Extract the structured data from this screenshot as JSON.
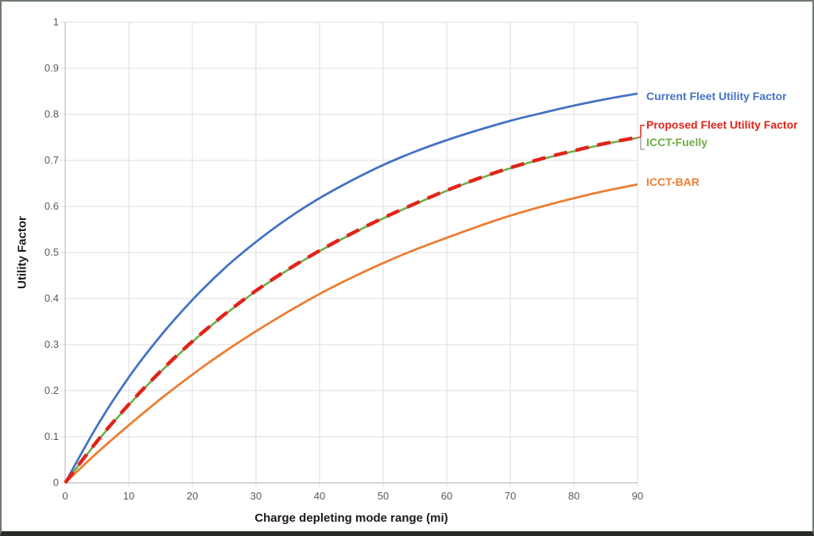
{
  "axes": {
    "y_title": "Utility Factor",
    "x_title": "Charge depleting mode range (mi)"
  },
  "chart_data": {
    "type": "line",
    "title": "",
    "xlabel": "Charge depleting mode range (mi)",
    "ylabel": "Utility Factor",
    "xlim": [
      0,
      90
    ],
    "ylim": [
      0,
      1
    ],
    "x_ticks": [
      0,
      10,
      20,
      30,
      40,
      50,
      60,
      70,
      80,
      90
    ],
    "x_tick_labels": [
      "0",
      "10",
      "20",
      "30",
      "40",
      "50",
      "60",
      "70",
      "80",
      "90"
    ],
    "y_ticks": [
      0,
      0.1,
      0.2,
      0.3,
      0.4,
      0.5,
      0.6,
      0.7,
      0.8,
      0.9,
      1
    ],
    "y_tick_labels": [
      "0",
      "0.1",
      "0.2",
      "0.3",
      "0.4",
      "0.5",
      "0.6",
      "0.7",
      "0.8",
      "0.9",
      "1"
    ],
    "grid": true,
    "legend_position": "colored labels at right of plot, next to each curve end",
    "x": [
      0,
      5,
      10,
      15,
      20,
      25,
      30,
      35,
      40,
      45,
      50,
      55,
      60,
      65,
      70,
      75,
      80,
      85,
      90
    ],
    "series": [
      {
        "name": "Current Fleet Utility Factor",
        "color": "#4472c4",
        "line_style": "solid",
        "values": [
          0,
          0.123,
          0.229,
          0.319,
          0.397,
          0.465,
          0.523,
          0.574,
          0.618,
          0.656,
          0.69,
          0.719,
          0.744,
          0.766,
          0.786,
          0.803,
          0.819,
          0.833,
          0.845
        ]
      },
      {
        "name": "Proposed Fleet Utility Factor",
        "color": "#e2231a",
        "line_style": "dashed",
        "values": [
          0,
          0.09,
          0.17,
          0.242,
          0.307,
          0.365,
          0.417,
          0.463,
          0.504,
          0.541,
          0.575,
          0.606,
          0.635,
          0.661,
          0.684,
          0.704,
          0.721,
          0.737,
          0.75
        ]
      },
      {
        "name": "ICCT-Fuelly",
        "color": "#70ad47",
        "line_style": "solid",
        "values": [
          0,
          0.089,
          0.169,
          0.241,
          0.306,
          0.364,
          0.416,
          0.462,
          0.503,
          0.54,
          0.574,
          0.605,
          0.634,
          0.66,
          0.683,
          0.703,
          0.72,
          0.736,
          0.749
        ]
      },
      {
        "name": "ICCT-BAR",
        "color": "#ed7d31",
        "line_style": "solid",
        "values": [
          0,
          0.065,
          0.125,
          0.182,
          0.235,
          0.284,
          0.329,
          0.371,
          0.41,
          0.445,
          0.477,
          0.506,
          0.532,
          0.557,
          0.58,
          0.6,
          0.618,
          0.634,
          0.648
        ]
      }
    ],
    "style": {
      "grid_color": "#dcdcdc",
      "axis_line_color": "#bfbfbf",
      "tick_text_color": "#595959",
      "bracket_gray": "#a6a6a6"
    }
  }
}
